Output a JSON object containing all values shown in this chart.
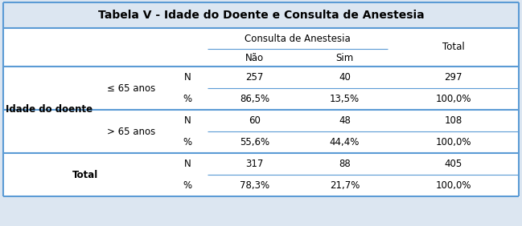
{
  "title": "Tabela V - Idade do Doente e Consulta de Anestesia",
  "title_bg": "#dce6f1",
  "table_bg": "#ffffff",
  "outer_bg": "#dce6f1",
  "line_color": "#5b9bd5",
  "thick_line_color": "#5b9bd5",
  "title_fontsize": 10,
  "body_fontsize": 8.5,
  "col_header": [
    "Não",
    "Sim",
    "Total"
  ],
  "col_group": "Consulta de Anestesia",
  "row_group_label": "Idade do doente",
  "row_subgroups": [
    "≤ 65 anos",
    "> 65 anos"
  ],
  "total_label": "Total",
  "stat_labels": [
    "N",
    "%"
  ],
  "data": {
    "le65_N": [
      "257",
      "40",
      "297"
    ],
    "le65_pct": [
      "86,5%",
      "13,5%",
      "100,0%"
    ],
    "gt65_N": [
      "60",
      "48",
      "108"
    ],
    "gt65_pct": [
      "55,6%",
      "44,4%",
      "100,0%"
    ],
    "total_N": [
      "317",
      "88",
      "405"
    ],
    "total_pct": [
      "78,3%",
      "21,7%",
      "100,0%"
    ]
  },
  "figsize": [
    6.49,
    2.82
  ],
  "dpi": 100
}
